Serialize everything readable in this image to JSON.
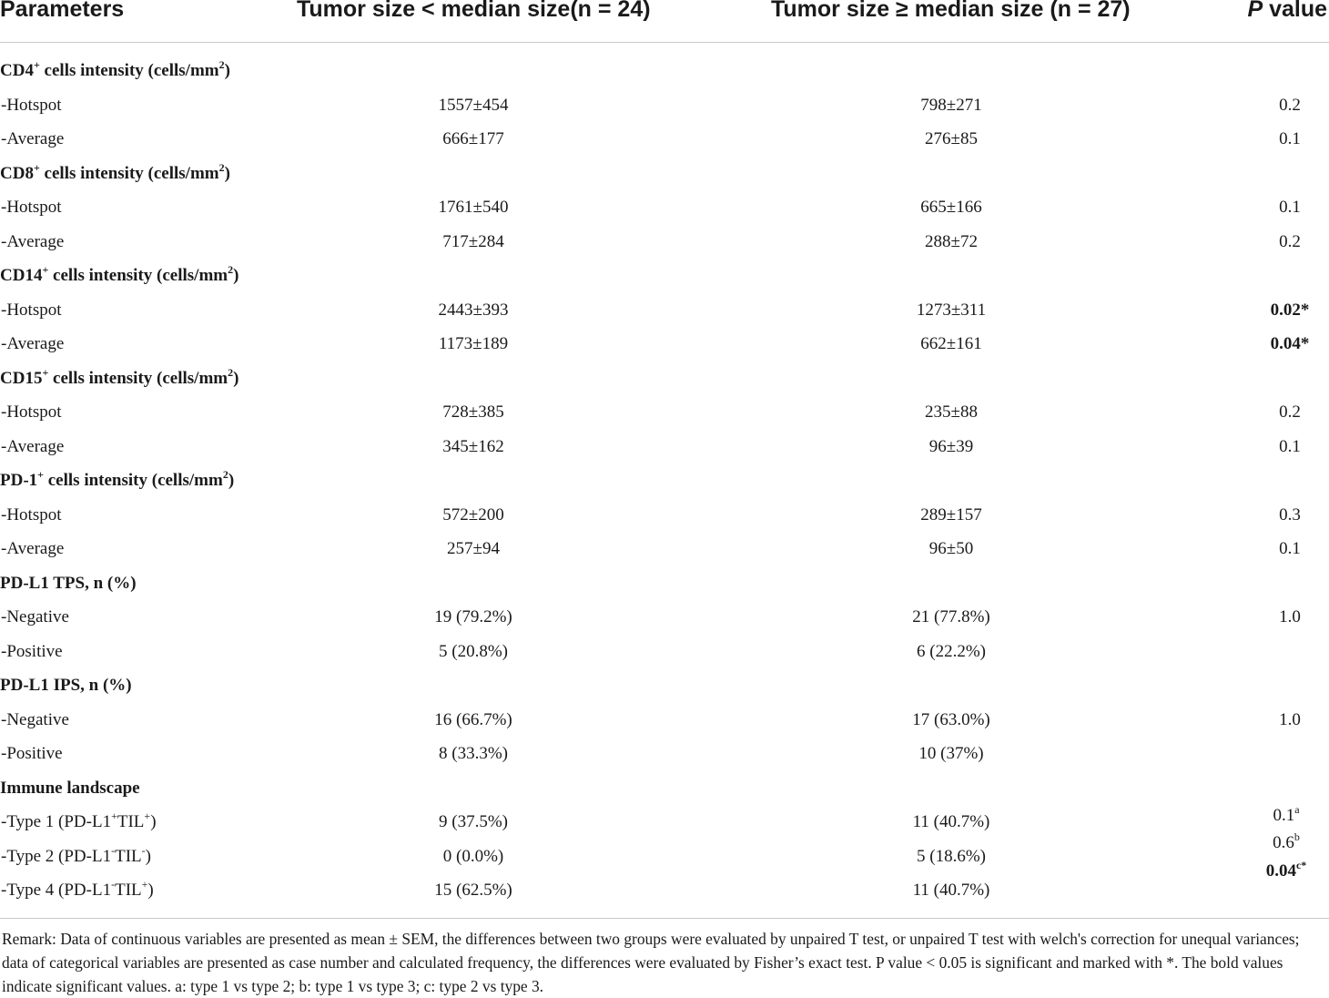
{
  "header": {
    "parameters": "Parameters",
    "group1": "Tumor size < median size(n = 24)",
    "group2": "Tumor size ≥ median size (n = 27)",
    "p_italic": "P",
    "p_rest": " value"
  },
  "sections": [
    {
      "title": "CD4",
      "sup": "+",
      "title_rest": " cells intensity (cells/mm",
      "unit_sup": "2",
      "title_end": ")",
      "rows": [
        {
          "label": "-Hotspot",
          "g1": "1557±454",
          "g2": "798±271",
          "p": "0.2",
          "p_star": ""
        },
        {
          "label": "-Average",
          "g1": "666±177",
          "g2": "276±85",
          "p": "0.1",
          "p_star": ""
        }
      ]
    },
    {
      "title": "CD8",
      "sup": "+",
      "title_rest": " cells intensity (cells/mm",
      "unit_sup": "2",
      "title_end": ")",
      "rows": [
        {
          "label": "-Hotspot",
          "g1": "1761±540",
          "g2": "665±166",
          "p": "0.1",
          "p_star": ""
        },
        {
          "label": "-Average",
          "g1": "717±284",
          "g2": "288±72",
          "p": "0.2",
          "p_star": ""
        }
      ]
    },
    {
      "title": "CD14",
      "sup": "+",
      "title_rest": " cells intensity (cells/mm",
      "unit_sup": "2",
      "title_end": ")",
      "rows": [
        {
          "label": "-Hotspot",
          "g1": "2443±393",
          "g2": "1273±311",
          "p": "0.02",
          "p_star": "*"
        },
        {
          "label": "-Average",
          "g1": "1173±189",
          "g2": "662±161",
          "p": "0.04",
          "p_star": "*"
        }
      ]
    },
    {
      "title": "CD15",
      "sup": "+",
      "title_rest": " cells intensity (cells/mm",
      "unit_sup": "2",
      "title_end": ")",
      "rows": [
        {
          "label": "-Hotspot",
          "g1": "728±385",
          "g2": "235±88",
          "p": "0.2",
          "p_star": ""
        },
        {
          "label": "-Average",
          "g1": "345±162",
          "g2": "96±39",
          "p": "0.1",
          "p_star": ""
        }
      ]
    },
    {
      "title": "PD-1",
      "sup": "+",
      "title_rest": " cells intensity (cells/mm",
      "unit_sup": "2",
      "title_end": ")",
      "rows": [
        {
          "label": "-Hotspot",
          "g1": "572±200",
          "g2": "289±157",
          "p": "0.3",
          "p_star": ""
        },
        {
          "label": "-Average",
          "g1": "257±94",
          "g2": "96±50",
          "p": "0.1",
          "p_star": ""
        }
      ]
    },
    {
      "title": "PD-L1 TPS, n (%)",
      "rows": [
        {
          "label": "-Negative",
          "g1": "19 (79.2%)",
          "g2": "21 (77.8%)",
          "p": "1.0",
          "p_star": ""
        },
        {
          "label": "-Positive",
          "g1": "5 (20.8%)",
          "g2": "6 (22.2%)",
          "p": "",
          "p_star": ""
        }
      ]
    },
    {
      "title": "PD-L1 IPS, n (%)",
      "rows": [
        {
          "label": "-Negative",
          "g1": "16 (66.7%)",
          "g2": "17 (63.0%)",
          "p": "1.0",
          "p_star": ""
        },
        {
          "label": "-Positive",
          "g1": "8 (33.3%)",
          "g2": "10 (37%)",
          "p": "",
          "p_star": ""
        }
      ]
    },
    {
      "title": "Immune landscape",
      "rows": [
        {
          "label_a": "-Type 1 (PD-L1",
          "label_s1": "+",
          "label_b": "TIL",
          "label_s2": "+",
          "label_c": ")",
          "g1": "9 (37.5%)",
          "g2": "11 (40.7%)"
        },
        {
          "label_a": "-Type 2 (PD-L1",
          "label_s1": "-",
          "label_b": "TIL",
          "label_s2": "-",
          "label_c": ")",
          "g1": "0 (0.0%)",
          "g2": "5 (18.6%)"
        },
        {
          "label_a": "-Type 4 (PD-L1",
          "label_s1": "-",
          "label_b": "TIL",
          "label_s2": "+",
          "label_c": ")",
          "g1": "15 (62.5%)",
          "g2": "11 (40.7%)"
        }
      ],
      "p_values": [
        {
          "value": "0.1",
          "sup": "a",
          "bold": false
        },
        {
          "value": "0.6",
          "sup": "b",
          "bold": false
        },
        {
          "value": "0.04",
          "sup": "c*",
          "bold": true
        }
      ]
    }
  ],
  "remark": "Remark: Data of continuous variables are presented as mean ± SEM, the differences between two groups were evaluated by unpaired T test, or unpaired T test with welch's correction for unequal variances; data of categorical variables are presented as case number and calculated frequency, the differences were evaluated by Fisher’s exact test. P value < 0.05 is significant and marked with *. The bold values indicate significant values. a: type 1 vs type 2; b: type 1 vs type 3; c: type 2 vs type 3."
}
